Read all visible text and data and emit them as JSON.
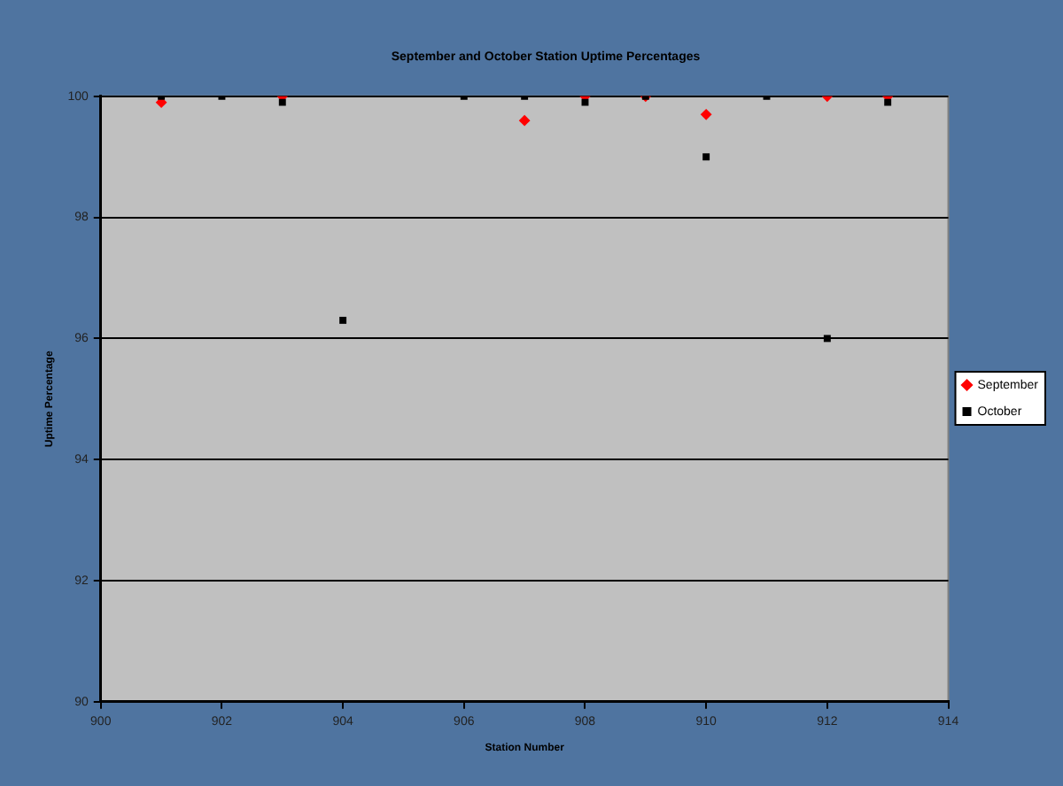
{
  "chart_data": {
    "type": "scatter",
    "title": "September and October Station Uptime Percentages",
    "xlabel": "Station Number",
    "ylabel": "Uptime Percentage",
    "x": [
      901,
      902,
      903,
      904,
      906,
      907,
      908,
      909,
      910,
      911,
      912,
      913
    ],
    "series": [
      {
        "name": "September",
        "color": "#ff0000",
        "marker": "diamond",
        "values": [
          99.9,
          null,
          100,
          null,
          null,
          99.6,
          100,
          100,
          99.7,
          null,
          100,
          100
        ]
      },
      {
        "name": "October",
        "color": "#000000",
        "marker": "square",
        "values": [
          100,
          100,
          99.9,
          96.3,
          100,
          100,
          99.9,
          100,
          99.0,
          100,
          96.0,
          99.9
        ]
      }
    ],
    "xlim": [
      900,
      914
    ],
    "xticks": [
      900,
      902,
      904,
      906,
      908,
      910,
      912,
      914
    ],
    "ylim": [
      90,
      100
    ],
    "yticks": [
      90,
      92,
      94,
      96,
      98,
      100
    ],
    "grid": "y",
    "legend": "right"
  }
}
